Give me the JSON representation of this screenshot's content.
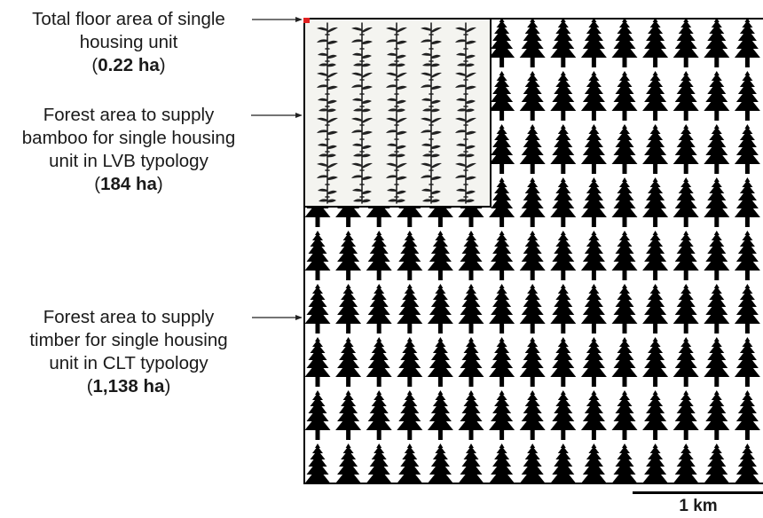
{
  "labels": {
    "floor": {
      "line1": "Total floor area of single",
      "line2": "housing unit",
      "value": "0.22 ha"
    },
    "bamboo": {
      "line1": "Forest area to supply",
      "line2": "bamboo for single housing",
      "line3": "unit in LVB typology",
      "value": "184 ha"
    },
    "timber": {
      "line1": "Forest area to supply",
      "line2": "timber for single housing",
      "line3": "unit in CLT typology",
      "value": "1,138 ha"
    }
  },
  "scale_bar": {
    "label": "1 km"
  },
  "colors": {
    "floor_marker": "#e02020",
    "tree": "#000000",
    "bamboo": "#222222",
    "frame": "#000000",
    "bamboo_background": "#f4f4f0"
  },
  "icons": {
    "tree": "conifer-tree-icon",
    "bamboo": "bamboo-plant-icon"
  }
}
